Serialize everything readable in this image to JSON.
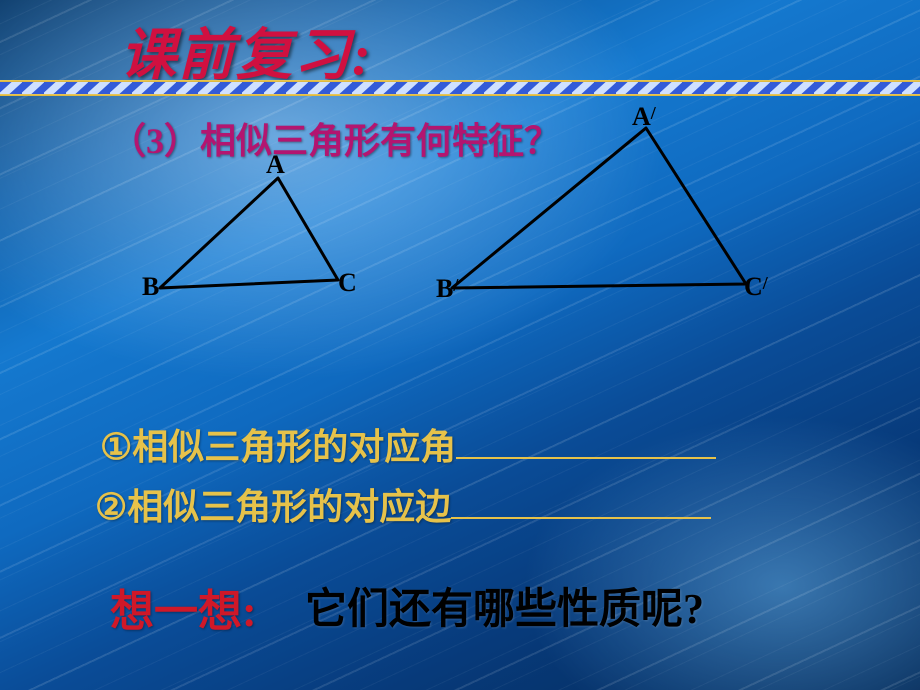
{
  "title": "课前复习:",
  "question3": "（3）相似三角形有何特征？",
  "labels": {
    "A": "A",
    "B": "B",
    "C": "C",
    "Ap": "A",
    "Bp": "B",
    "Cp": "C",
    "prime": "/"
  },
  "fill": {
    "bullet1": "①",
    "bullet2": "②",
    "text1": "相似三角形的对应角",
    "text2": "相似三角形的对应边"
  },
  "think": {
    "label": "想一想:",
    "question": "它们还有哪些性质呢?"
  },
  "triangles": {
    "small": {
      "A": [
        278,
        178
      ],
      "B": [
        160,
        288
      ],
      "C": [
        338,
        280
      ],
      "stroke": "#000000",
      "strokeWidth": 3
    },
    "large": {
      "A": [
        646,
        128
      ],
      "B": [
        452,
        288
      ],
      "C": [
        746,
        284
      ],
      "stroke": "#000000",
      "strokeWidth": 3
    }
  },
  "rope": {
    "topY": 78,
    "height": 20,
    "twistWidth": 22,
    "mainColor": "#335bd8",
    "lightColor": "#cfe0ff",
    "goldColor": "#d6a820",
    "goldLight": "#f7e28a"
  },
  "colors": {
    "titleColor": "#d01040",
    "magenta": "#b31570",
    "yellow": "#e6c24a",
    "red": "#d01828",
    "black": "#000000"
  },
  "fonts": {
    "titleSize": 56,
    "bodySize": 36,
    "thinkSize": 44
  }
}
